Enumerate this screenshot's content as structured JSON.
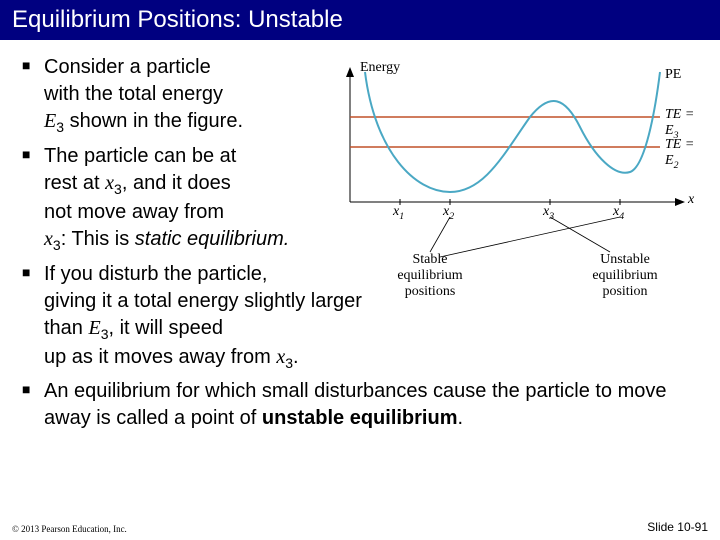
{
  "title": "Equilibrium Positions: Unstable",
  "bullets": [
    {
      "html": "Consider a particle<br>with the total energy<br><span class='ital-serif'>E</span><span class='sub'>3</span> shown in the figure."
    },
    {
      "html": "The particle can be at<br>rest at <span class='ital-serif'>x</span><span class='sub'>3</span>, and it does<br>not move away from<br><span class='ital-serif'>x</span><span class='sub'>3</span>: This is <span class='italic'>static equilibrium.</span>"
    },
    {
      "html": "If you disturb the particle,<br>giving it a total energy slightly larger<br>than <span class='ital-serif'>E</span><span class='sub'>3</span>, it will speed<br>up as it moves away from <span class='ital-serif'>x</span><span class='sub'>3</span>."
    },
    {
      "html": "An equilibrium for which small disturbances cause the particle to move away is called a point of <b>unstable equilibrium</b>."
    }
  ],
  "footer_left": "© 2013 Pearson Education, Inc.",
  "footer_right": "Slide 10-91",
  "figure": {
    "curve_color": "#4aa8c4",
    "te_line_color": "#c05028",
    "axis_color": "#000000",
    "bg": "#ffffff",
    "labels": {
      "energy": "Energy",
      "pe": "PE",
      "te3": "TE = E₃",
      "te2": "TE = E₂",
      "x": "x",
      "x1": "x₁",
      "x2": "x₂",
      "x3": "x₃",
      "x4": "x₄",
      "stable": "Stable equilibrium positions",
      "unstable": "Unstable equilibrium position"
    },
    "curve_width": 2,
    "te_line_width": 1.5,
    "label_fontsize": 14
  },
  "colors": {
    "title_bg": "#000080",
    "title_fg": "#ffffff",
    "body_bg": "#ffffff",
    "text": "#000000"
  }
}
